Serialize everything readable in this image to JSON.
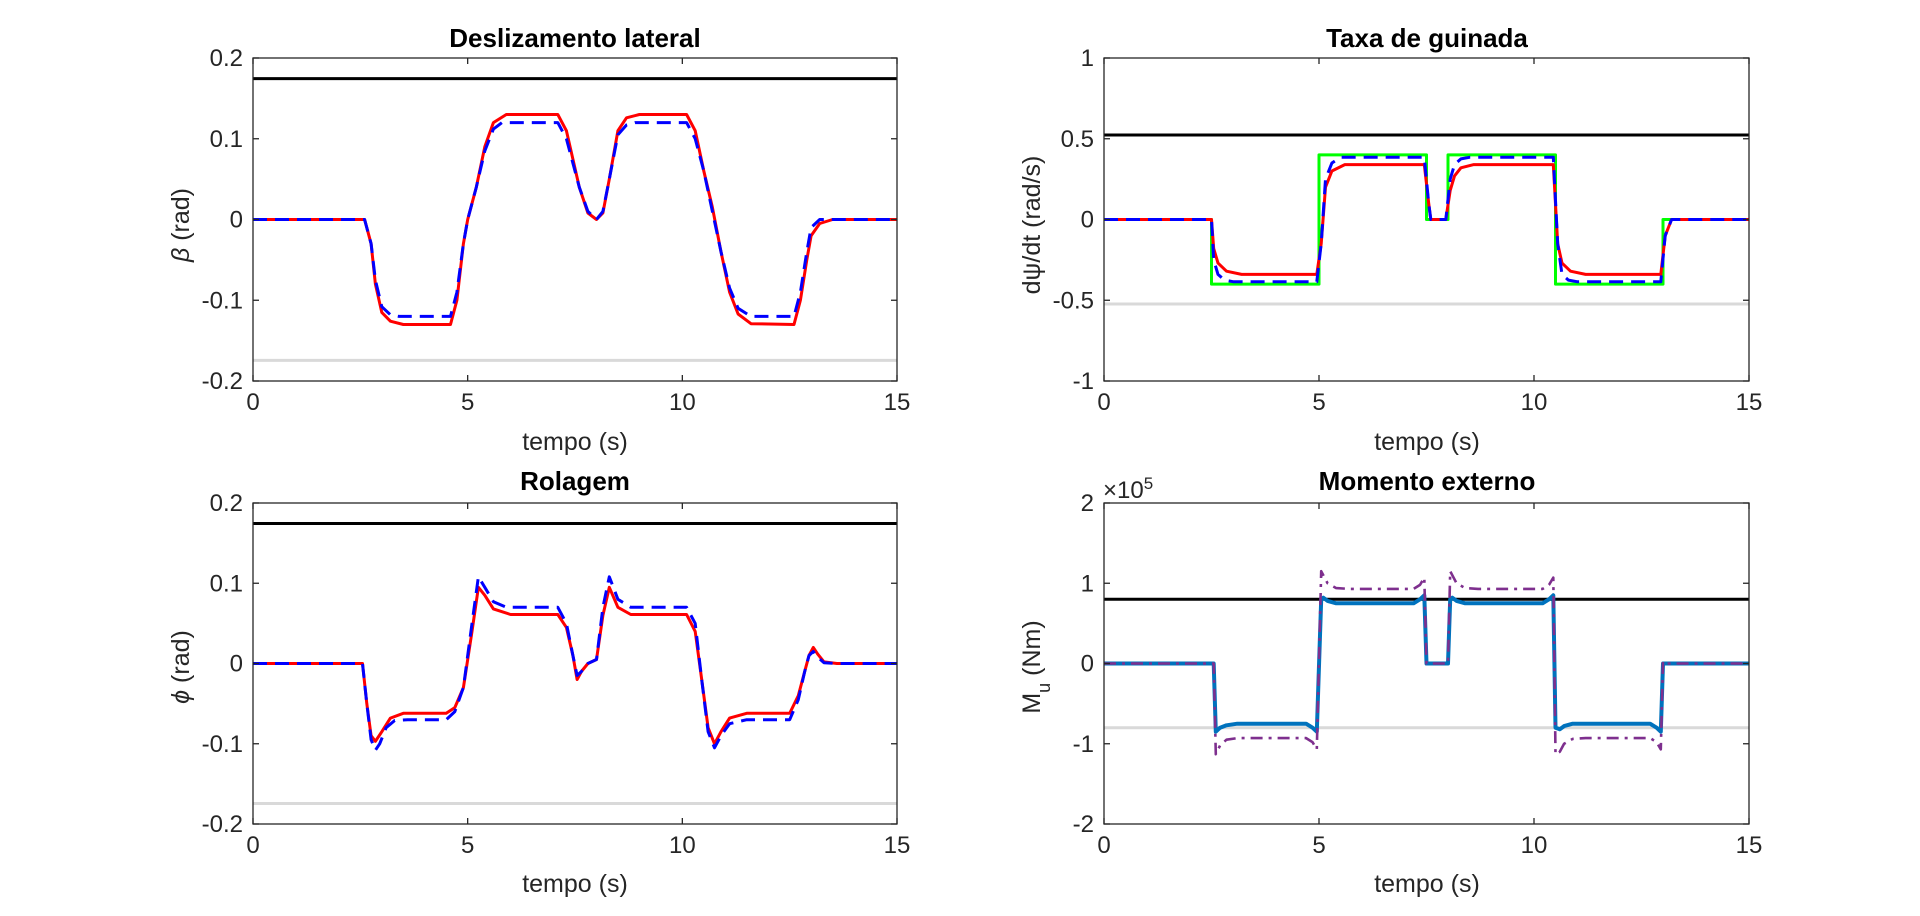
{
  "colors": {
    "upper_limit": "#000000",
    "lower_limit": "#d9d9d9",
    "red_series": "#ff0000",
    "blue_series": "#0000ff",
    "green_series": "#00ff00",
    "moment_series": "#0072bd",
    "moment_ref_series": "#7e2f8e"
  },
  "chart_data": [
    {
      "id": "beta",
      "type": "line",
      "title": "Deslizamento lateral",
      "xlabel": "tempo (s)",
      "ylabel_prefix": "β",
      "ylabel_suffix": " (rad)",
      "xlim": [
        0,
        15
      ],
      "ylim": [
        -0.2,
        0.2
      ],
      "xticks": [
        "0",
        "5",
        "10",
        "15"
      ],
      "xtick_values": [
        0,
        5,
        10,
        15
      ],
      "yticks": [
        "-0.2",
        "-0.1",
        "0",
        "0.1",
        "0.2"
      ],
      "ytick_values": [
        -0.2,
        -0.1,
        0,
        0.1,
        0.2
      ],
      "hlines": [
        {
          "y": 0.1745,
          "color_key": "upper_limit"
        },
        {
          "y": -0.1745,
          "color_key": "lower_limit"
        }
      ],
      "series": [
        {
          "color_key": "red_series",
          "dash": "solid",
          "x": [
            0,
            2.6,
            2.75,
            2.85,
            3.0,
            3.2,
            3.5,
            4.6,
            4.75,
            4.9,
            5.0,
            5.2,
            5.4,
            5.6,
            5.9,
            7.1,
            7.3,
            7.6,
            7.8,
            8.0,
            8.15,
            8.3,
            8.5,
            8.7,
            9.0,
            10.1,
            10.3,
            10.5,
            10.7,
            10.9,
            11.1,
            11.3,
            11.6,
            12.6,
            12.75,
            12.9,
            13.0,
            13.2,
            13.5,
            15
          ],
          "y": [
            0,
            0,
            -0.03,
            -0.08,
            -0.115,
            -0.126,
            -0.13,
            -0.13,
            -0.1,
            -0.03,
            0,
            0.04,
            0.09,
            0.12,
            0.13,
            0.13,
            0.11,
            0.04,
            0.008,
            0,
            0.008,
            0.05,
            0.11,
            0.126,
            0.13,
            0.13,
            0.11,
            0.06,
            0.015,
            -0.04,
            -0.09,
            -0.117,
            -0.129,
            -0.13,
            -0.1,
            -0.05,
            -0.02,
            -0.005,
            0,
            0
          ]
        },
        {
          "color_key": "blue_series",
          "dash": "dashed",
          "x": [
            0,
            2.6,
            2.75,
            2.85,
            3.0,
            3.2,
            3.4,
            4.6,
            4.75,
            4.9,
            5.0,
            5.2,
            5.4,
            5.6,
            5.8,
            7.1,
            7.3,
            7.6,
            7.8,
            8.0,
            8.15,
            8.3,
            8.5,
            8.7,
            8.9,
            10.1,
            10.3,
            10.5,
            10.7,
            10.9,
            11.1,
            11.3,
            11.6,
            12.6,
            12.75,
            12.9,
            13.0,
            13.2,
            13.5,
            15
          ],
          "y": [
            0,
            0,
            -0.03,
            -0.075,
            -0.108,
            -0.118,
            -0.12,
            -0.12,
            -0.09,
            -0.03,
            0,
            0.04,
            0.085,
            0.112,
            0.12,
            0.12,
            0.1,
            0.04,
            0.01,
            0,
            0.01,
            0.05,
            0.105,
            0.117,
            0.12,
            0.12,
            0.1,
            0.06,
            0.01,
            -0.04,
            -0.085,
            -0.11,
            -0.12,
            -0.12,
            -0.09,
            -0.04,
            -0.01,
            0,
            0,
            0
          ]
        }
      ]
    },
    {
      "id": "yaw",
      "type": "line",
      "title": "Taxa de guinada",
      "xlabel": "tempo (s)",
      "ylabel_prefix": "dψ",
      "ylabel_suffix": "/dt (rad/s)",
      "xlim": [
        0,
        15
      ],
      "ylim": [
        -1,
        1
      ],
      "xticks": [
        "0",
        "5",
        "10",
        "15"
      ],
      "xtick_values": [
        0,
        5,
        10,
        15
      ],
      "yticks": [
        "-1",
        "-0.5",
        "0",
        "0.5",
        "1"
      ],
      "ytick_values": [
        -1,
        -0.5,
        0,
        0.5,
        1
      ],
      "hlines": [
        {
          "y": 0.5236,
          "color_key": "upper_limit"
        },
        {
          "y": -0.5236,
          "color_key": "lower_limit"
        }
      ],
      "series": [
        {
          "color_key": "green_series",
          "dash": "solid",
          "x": [
            0,
            2.5,
            2.5,
            5.0,
            5.0,
            7.5,
            7.5,
            8.0,
            8.0,
            10.5,
            10.5,
            13.0,
            13.0,
            15
          ],
          "y": [
            0,
            0,
            -0.4,
            -0.4,
            0.4,
            0.4,
            0,
            0,
            0.4,
            0.4,
            -0.4,
            -0.4,
            0,
            0
          ]
        },
        {
          "color_key": "red_series",
          "dash": "solid",
          "x": [
            0,
            2.5,
            2.55,
            2.65,
            2.85,
            3.2,
            4.95,
            5.05,
            5.15,
            5.3,
            5.6,
            7.45,
            7.55,
            7.6,
            7.95,
            8.05,
            8.15,
            8.3,
            8.6,
            10.45,
            10.55,
            10.65,
            10.85,
            11.2,
            12.95,
            13.05,
            13.2,
            15
          ],
          "y": [
            0,
            0,
            -0.18,
            -0.27,
            -0.32,
            -0.34,
            -0.34,
            -0.15,
            0.2,
            0.3,
            0.34,
            0.34,
            0.1,
            0,
            0,
            0.18,
            0.27,
            0.32,
            0.34,
            0.34,
            -0.15,
            -0.27,
            -0.32,
            -0.34,
            -0.34,
            -0.1,
            0,
            0
          ]
        },
        {
          "color_key": "blue_series",
          "dash": "dashed",
          "x": [
            0,
            2.5,
            2.55,
            2.65,
            2.8,
            3.0,
            4.95,
            5.05,
            5.15,
            5.3,
            5.5,
            7.45,
            7.55,
            7.6,
            7.95,
            8.05,
            8.15,
            8.3,
            8.5,
            10.45,
            10.55,
            10.65,
            10.8,
            11.0,
            12.95,
            13.05,
            13.2,
            15
          ],
          "y": [
            0,
            0,
            -0.25,
            -0.34,
            -0.375,
            -0.385,
            -0.385,
            -0.15,
            0.25,
            0.35,
            0.385,
            0.385,
            0.1,
            0,
            0,
            0.25,
            0.34,
            0.375,
            0.385,
            0.385,
            -0.15,
            -0.34,
            -0.375,
            -0.385,
            -0.385,
            -0.1,
            0,
            0
          ]
        }
      ]
    },
    {
      "id": "roll",
      "type": "line",
      "title": "Rolagem",
      "xlabel": "tempo (s)",
      "ylabel_prefix": "ϕ",
      "ylabel_suffix": " (rad)",
      "xlim": [
        0,
        15
      ],
      "ylim": [
        -0.2,
        0.2
      ],
      "xticks": [
        "0",
        "5",
        "10",
        "15"
      ],
      "xtick_values": [
        0,
        5,
        10,
        15
      ],
      "yticks": [
        "-0.2",
        "-0.1",
        "0",
        "0.1",
        "0.2"
      ],
      "ytick_values": [
        -0.2,
        -0.1,
        0,
        0.1,
        0.2
      ],
      "hlines": [
        {
          "y": 0.1745,
          "color_key": "upper_limit"
        },
        {
          "y": -0.1745,
          "color_key": "lower_limit"
        }
      ],
      "series": [
        {
          "color_key": "red_series",
          "dash": "solid",
          "x": [
            0,
            2.55,
            2.65,
            2.75,
            2.85,
            3.0,
            3.2,
            3.5,
            4.5,
            4.7,
            4.9,
            5.1,
            5.25,
            5.4,
            5.6,
            6.0,
            7.1,
            7.3,
            7.45,
            7.55,
            7.65,
            7.8,
            8.0,
            8.15,
            8.3,
            8.5,
            8.8,
            10.1,
            10.3,
            10.45,
            10.6,
            10.75,
            10.9,
            11.1,
            11.5,
            12.5,
            12.7,
            12.85,
            12.95,
            13.05,
            13.15,
            13.3,
            13.6,
            15
          ],
          "y": [
            0,
            0,
            -0.05,
            -0.09,
            -0.097,
            -0.085,
            -0.068,
            -0.062,
            -0.062,
            -0.055,
            -0.03,
            0.04,
            0.095,
            0.085,
            0.068,
            0.061,
            0.061,
            0.045,
            0.01,
            -0.02,
            -0.01,
            0,
            0.005,
            0.06,
            0.095,
            0.07,
            0.061,
            0.061,
            0.04,
            -0.02,
            -0.08,
            -0.1,
            -0.085,
            -0.068,
            -0.062,
            -0.062,
            -0.04,
            -0.01,
            0.01,
            0.02,
            0.012,
            0.002,
            0,
            0
          ]
        },
        {
          "color_key": "blue_series",
          "dash": "dashed",
          "x": [
            0,
            2.55,
            2.65,
            2.75,
            2.85,
            2.95,
            3.1,
            3.3,
            3.6,
            4.5,
            4.7,
            4.9,
            5.1,
            5.25,
            5.4,
            5.6,
            5.9,
            7.1,
            7.3,
            7.45,
            7.55,
            7.65,
            7.8,
            8.0,
            8.15,
            8.3,
            8.5,
            8.8,
            10.1,
            10.3,
            10.45,
            10.6,
            10.75,
            10.9,
            11.1,
            11.5,
            12.5,
            12.7,
            12.85,
            12.95,
            13.05,
            13.15,
            13.3,
            13.6,
            15
          ],
          "y": [
            0,
            0,
            -0.05,
            -0.095,
            -0.108,
            -0.1,
            -0.08,
            -0.071,
            -0.07,
            -0.07,
            -0.06,
            -0.03,
            0.05,
            0.108,
            0.095,
            0.077,
            0.07,
            0.07,
            0.05,
            0.01,
            -0.015,
            -0.01,
            0,
            0.005,
            0.07,
            0.108,
            0.08,
            0.07,
            0.07,
            0.05,
            -0.02,
            -0.085,
            -0.105,
            -0.09,
            -0.075,
            -0.07,
            -0.07,
            -0.045,
            -0.01,
            0.01,
            0.015,
            0.008,
            0.001,
            0,
            0
          ]
        }
      ]
    },
    {
      "id": "moment",
      "type": "line",
      "title": "Momento externo",
      "xlabel": "tempo (s)",
      "ylabel_prefix": "M",
      "ylabel_sub": "u",
      "ylabel_suffix": " (Nm)",
      "exponent_base": "×10",
      "exponent_power": "5",
      "xlim": [
        0,
        15
      ],
      "ylim": [
        -2,
        2
      ],
      "xticks": [
        "0",
        "5",
        "10",
        "15"
      ],
      "xtick_values": [
        0,
        5,
        10,
        15
      ],
      "yticks": [
        "-2",
        "-1",
        "0",
        "1",
        "2"
      ],
      "ytick_values": [
        -2,
        -1,
        0,
        1,
        2
      ],
      "hlines": [
        {
          "y": 0.8,
          "color_key": "upper_limit"
        },
        {
          "y": -0.8,
          "color_key": "lower_limit"
        }
      ],
      "series": [
        {
          "color_key": "moment_series",
          "dash": "solid",
          "width": 4,
          "x": [
            0,
            2.55,
            2.6,
            2.7,
            2.85,
            3.1,
            4.7,
            4.85,
            4.95,
            5.05,
            5.1,
            5.2,
            5.4,
            5.7,
            7.2,
            7.35,
            7.45,
            7.5,
            7.6,
            7.9,
            8.0,
            8.05,
            8.1,
            8.2,
            8.4,
            8.7,
            10.2,
            10.35,
            10.45,
            10.5,
            10.6,
            10.7,
            10.9,
            11.2,
            12.7,
            12.85,
            12.95,
            13.0,
            13.1,
            15
          ],
          "y": [
            0,
            0,
            -0.85,
            -0.8,
            -0.77,
            -0.75,
            -0.75,
            -0.8,
            -0.85,
            0.8,
            0.82,
            0.78,
            0.75,
            0.75,
            0.75,
            0.8,
            0.85,
            0,
            0,
            0,
            0,
            0.8,
            0.82,
            0.78,
            0.75,
            0.75,
            0.75,
            0.8,
            0.85,
            -0.8,
            -0.82,
            -0.78,
            -0.75,
            -0.75,
            -0.75,
            -0.8,
            -0.85,
            0,
            0,
            0
          ]
        },
        {
          "color_key": "moment_ref_series",
          "dash": "dashdot",
          "width": 2.6,
          "x": [
            0,
            2.55,
            2.6,
            2.7,
            2.85,
            3.1,
            4.7,
            4.85,
            4.95,
            5.05,
            5.1,
            5.2,
            5.4,
            5.7,
            7.2,
            7.35,
            7.45,
            7.5,
            7.6,
            7.9,
            8.0,
            8.05,
            8.1,
            8.2,
            8.4,
            8.7,
            10.2,
            10.35,
            10.45,
            10.5,
            10.6,
            10.7,
            10.9,
            11.2,
            12.7,
            12.85,
            12.95,
            13.0,
            13.1,
            15
          ],
          "y": [
            0,
            0,
            -1.13,
            -1.02,
            -0.95,
            -0.93,
            -0.93,
            -0.98,
            -1.07,
            1.15,
            1.1,
            1.0,
            0.94,
            0.93,
            0.93,
            0.98,
            1.07,
            0,
            0,
            0,
            0,
            1.15,
            1.1,
            1.0,
            0.94,
            0.93,
            0.93,
            0.98,
            1.07,
            -1.13,
            -1.1,
            -1.0,
            -0.94,
            -0.93,
            -0.93,
            -0.98,
            -1.07,
            0.03,
            0,
            0
          ]
        }
      ]
    }
  ]
}
